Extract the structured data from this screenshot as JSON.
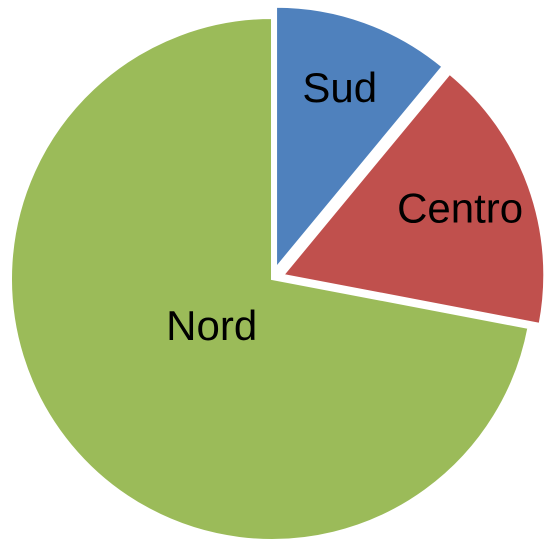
{
  "chart_data": {
    "type": "pie",
    "categories": [
      "Sud",
      "Centro",
      "Nord"
    ],
    "values": [
      11,
      17,
      72
    ],
    "colors": [
      "#4f81bd",
      "#c0504d",
      "#9bbb59"
    ]
  }
}
